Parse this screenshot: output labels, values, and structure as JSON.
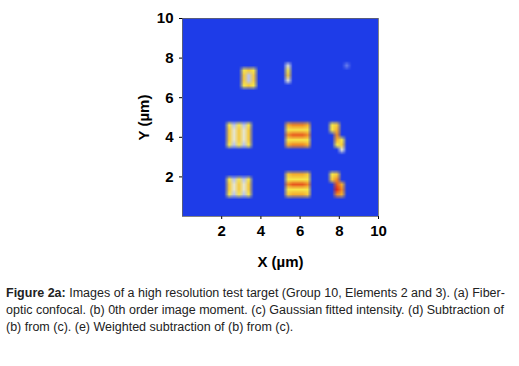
{
  "chart_data": {
    "type": "heatmap",
    "x_label": "X (µm)",
    "y_label": "Y (µm)",
    "xlim": [
      0,
      10
    ],
    "ylim": [
      0,
      10
    ],
    "xticks": [
      2,
      4,
      6,
      8,
      10
    ],
    "yticks": [
      2,
      4,
      6,
      8,
      10
    ],
    "color_range": [
      0,
      10
    ],
    "cells": [
      [
        0,
        0,
        0,
        0,
        0,
        0,
        0,
        0,
        0,
        0,
        0,
        0,
        0,
        0,
        0,
        0,
        0,
        0,
        0,
        0,
        0,
        0,
        0,
        0,
        0,
        0,
        0,
        0,
        0,
        0,
        0,
        0,
        0,
        0,
        0,
        0,
        0,
        0,
        0,
        0
      ],
      [
        0,
        0,
        0,
        0,
        0,
        0,
        0,
        0,
        0,
        0,
        0,
        0,
        0,
        0,
        0,
        0,
        0,
        0,
        0,
        0,
        0,
        0,
        0,
        0,
        0,
        0,
        0,
        0,
        0,
        0,
        0,
        0,
        0,
        0,
        0,
        0,
        0,
        0,
        0,
        0
      ],
      [
        0,
        0,
        0,
        0,
        0,
        0,
        0,
        0,
        0,
        0,
        0,
        0,
        0,
        0,
        0,
        0,
        0,
        0,
        0,
        0,
        0,
        0,
        0,
        0,
        0,
        0,
        0,
        0,
        0,
        0,
        0,
        0,
        0,
        0,
        0,
        0,
        0,
        0,
        0,
        0
      ],
      [
        0,
        0,
        0,
        0,
        0,
        0,
        0,
        0,
        0,
        0,
        0,
        0,
        0,
        0,
        0,
        0,
        0,
        0,
        0,
        0,
        0,
        0,
        0,
        0,
        0,
        0,
        0,
        0,
        0,
        0,
        0,
        0,
        0,
        0,
        0,
        0,
        0,
        0,
        0,
        0
      ],
      [
        0,
        0,
        0,
        0,
        0,
        0,
        0,
        0,
        0,
        0,
        0,
        0,
        0,
        0,
        0,
        0,
        0,
        0,
        0,
        0,
        0,
        0,
        0,
        0,
        0,
        0,
        0,
        0,
        0,
        0,
        0,
        0,
        0,
        0,
        0,
        0,
        0,
        0,
        0,
        0
      ],
      [
        0,
        0,
        0,
        0,
        0,
        0,
        0,
        0,
        0,
        0,
        0,
        0,
        0,
        0,
        0,
        0,
        0,
        0,
        0,
        0,
        0,
        0,
        0,
        0,
        0,
        0,
        0,
        0,
        0,
        0,
        0,
        0,
        0,
        0,
        0,
        0,
        0,
        0,
        0,
        0
      ],
      [
        0,
        0,
        0,
        0,
        0,
        0,
        0,
        0,
        0,
        0,
        0,
        0,
        0,
        0,
        0,
        0,
        0,
        0,
        0,
        0,
        0,
        0,
        0,
        0,
        0,
        0,
        0,
        0,
        0,
        0,
        0,
        0,
        0,
        0,
        0,
        0,
        0,
        0,
        0,
        0
      ],
      [
        0,
        0,
        0,
        0,
        0,
        0,
        0,
        0,
        0,
        0,
        0,
        0,
        0,
        0,
        0,
        0,
        0,
        0,
        0,
        0,
        0,
        0,
        0,
        0,
        0,
        0,
        0,
        0,
        0,
        0,
        0,
        0,
        0,
        0,
        0,
        0,
        0,
        0,
        0,
        0
      ],
      [
        0,
        0,
        0,
        0,
        0,
        0,
        0,
        0,
        0,
        0,
        0,
        0,
        0,
        0,
        0,
        0,
        0,
        0,
        0,
        0,
        0,
        0,
        0,
        0,
        0,
        0,
        0,
        0,
        0,
        0,
        0,
        0,
        0,
        0,
        0,
        0,
        0,
        0,
        0,
        0
      ],
      [
        0,
        0,
        0,
        0,
        0,
        0,
        0,
        0,
        0,
        0,
        0,
        0,
        0,
        0,
        0,
        0,
        0,
        0,
        0,
        0,
        0,
        3,
        0,
        0,
        0,
        0,
        0,
        0,
        0,
        0,
        0,
        0,
        0,
        1,
        0,
        0,
        0,
        0,
        0,
        0
      ],
      [
        0,
        0,
        0,
        0,
        0,
        0,
        0,
        0,
        0,
        0,
        0,
        0,
        5,
        6,
        5,
        0,
        0,
        0,
        0,
        0,
        0,
        5,
        0,
        0,
        0,
        0,
        0,
        0,
        0,
        0,
        0,
        0,
        0,
        0,
        0,
        0,
        0,
        0,
        0,
        0
      ],
      [
        0,
        0,
        0,
        0,
        0,
        0,
        0,
        0,
        0,
        0,
        0,
        0,
        6,
        2,
        6,
        0,
        0,
        0,
        0,
        0,
        0,
        6,
        0,
        0,
        0,
        0,
        0,
        0,
        0,
        0,
        0,
        0,
        0,
        0,
        0,
        0,
        0,
        0,
        0,
        0
      ],
      [
        0,
        0,
        0,
        0,
        0,
        0,
        0,
        0,
        0,
        0,
        0,
        0,
        6,
        2,
        6,
        0,
        0,
        0,
        0,
        0,
        0,
        3,
        0,
        0,
        0,
        0,
        0,
        0,
        0,
        0,
        0,
        0,
        0,
        0,
        0,
        0,
        0,
        0,
        0,
        0
      ],
      [
        0,
        0,
        0,
        0,
        0,
        0,
        0,
        0,
        0,
        0,
        0,
        0,
        5,
        6,
        5,
        0,
        0,
        0,
        0,
        0,
        0,
        0,
        0,
        0,
        0,
        0,
        0,
        0,
        0,
        0,
        0,
        0,
        0,
        0,
        0,
        0,
        0,
        0,
        0,
        0
      ],
      [
        0,
        0,
        0,
        0,
        0,
        0,
        0,
        0,
        0,
        0,
        0,
        0,
        0,
        0,
        0,
        0,
        0,
        0,
        0,
        0,
        0,
        0,
        0,
        0,
        0,
        0,
        0,
        0,
        0,
        0,
        0,
        0,
        0,
        0,
        0,
        0,
        0,
        0,
        0,
        0
      ],
      [
        0,
        0,
        0,
        0,
        0,
        0,
        0,
        0,
        0,
        0,
        0,
        0,
        0,
        0,
        0,
        0,
        0,
        0,
        0,
        0,
        0,
        0,
        0,
        0,
        0,
        0,
        0,
        0,
        0,
        0,
        0,
        0,
        0,
        0,
        0,
        0,
        0,
        0,
        0,
        0
      ],
      [
        0,
        0,
        0,
        0,
        0,
        0,
        0,
        0,
        0,
        0,
        0,
        0,
        0,
        0,
        0,
        0,
        0,
        0,
        0,
        0,
        0,
        0,
        0,
        0,
        0,
        0,
        0,
        0,
        0,
        0,
        0,
        0,
        0,
        0,
        0,
        0,
        0,
        0,
        0,
        0
      ],
      [
        0,
        0,
        0,
        0,
        0,
        0,
        0,
        0,
        0,
        0,
        0,
        0,
        0,
        0,
        0,
        0,
        0,
        0,
        0,
        0,
        0,
        0,
        0,
        0,
        0,
        0,
        0,
        0,
        0,
        0,
        0,
        0,
        0,
        0,
        0,
        0,
        0,
        0,
        0,
        0
      ],
      [
        0,
        0,
        0,
        0,
        0,
        0,
        0,
        0,
        0,
        0,
        0,
        0,
        0,
        0,
        0,
        0,
        0,
        0,
        0,
        0,
        0,
        0,
        0,
        0,
        0,
        0,
        0,
        0,
        0,
        0,
        0,
        0,
        0,
        0,
        0,
        0,
        0,
        0,
        0,
        0
      ],
      [
        0,
        0,
        0,
        0,
        0,
        0,
        0,
        0,
        0,
        0,
        0,
        0,
        0,
        0,
        0,
        0,
        0,
        0,
        0,
        0,
        0,
        0,
        0,
        0,
        0,
        0,
        0,
        0,
        0,
        0,
        0,
        0,
        0,
        0,
        0,
        0,
        0,
        0,
        0,
        0
      ],
      [
        0,
        0,
        0,
        0,
        0,
        0,
        0,
        0,
        0,
        0,
        0,
        0,
        0,
        0,
        0,
        0,
        0,
        0,
        0,
        0,
        0,
        0,
        0,
        0,
        0,
        0,
        0,
        0,
        0,
        0,
        0,
        0,
        0,
        0,
        0,
        0,
        0,
        0,
        0,
        0
      ],
      [
        0,
        0,
        0,
        0,
        0,
        0,
        0,
        0,
        0,
        5,
        2,
        5,
        2,
        5,
        0,
        0,
        0,
        0,
        0,
        0,
        0,
        7,
        8,
        8,
        8,
        7,
        0,
        0,
        0,
        0,
        5,
        6,
        0,
        0,
        0,
        0,
        0,
        0,
        0,
        0
      ],
      [
        0,
        0,
        0,
        0,
        0,
        0,
        0,
        0,
        0,
        6,
        3,
        6,
        3,
        6,
        0,
        0,
        0,
        0,
        0,
        0,
        0,
        5,
        5,
        5,
        5,
        5,
        0,
        0,
        0,
        0,
        5,
        7,
        0,
        0,
        0,
        0,
        0,
        0,
        0,
        0
      ],
      [
        0,
        0,
        0,
        0,
        0,
        0,
        0,
        0,
        0,
        6,
        3,
        6,
        3,
        6,
        0,
        0,
        0,
        0,
        0,
        0,
        0,
        8,
        9,
        9,
        9,
        8,
        0,
        0,
        0,
        0,
        0,
        8,
        0,
        0,
        0,
        0,
        0,
        0,
        0,
        0
      ],
      [
        0,
        0,
        0,
        0,
        0,
        0,
        0,
        0,
        0,
        6,
        3,
        6,
        3,
        6,
        0,
        0,
        0,
        0,
        0,
        0,
        0,
        5,
        5,
        5,
        5,
        5,
        0,
        0,
        0,
        0,
        0,
        7,
        5,
        0,
        0,
        0,
        0,
        0,
        0,
        0
      ],
      [
        0,
        0,
        0,
        0,
        0,
        0,
        0,
        0,
        0,
        5,
        2,
        5,
        2,
        5,
        0,
        0,
        0,
        0,
        0,
        0,
        0,
        7,
        8,
        8,
        8,
        7,
        0,
        0,
        0,
        0,
        0,
        5,
        6,
        0,
        0,
        0,
        0,
        0,
        0,
        0
      ],
      [
        0,
        0,
        0,
        0,
        0,
        0,
        0,
        0,
        0,
        0,
        0,
        0,
        0,
        0,
        0,
        0,
        0,
        0,
        0,
        0,
        0,
        0,
        0,
        0,
        0,
        0,
        0,
        0,
        0,
        0,
        0,
        0,
        3,
        0,
        0,
        0,
        0,
        0,
        0,
        0
      ],
      [
        0,
        0,
        0,
        0,
        0,
        0,
        0,
        0,
        0,
        0,
        0,
        0,
        0,
        0,
        0,
        0,
        0,
        0,
        0,
        0,
        0,
        0,
        0,
        0,
        0,
        0,
        0,
        0,
        0,
        0,
        0,
        0,
        0,
        0,
        0,
        0,
        0,
        0,
        0,
        0
      ],
      [
        0,
        0,
        0,
        0,
        0,
        0,
        0,
        0,
        0,
        0,
        0,
        0,
        0,
        0,
        0,
        0,
        0,
        0,
        0,
        0,
        0,
        0,
        0,
        0,
        0,
        0,
        0,
        0,
        0,
        0,
        0,
        0,
        0,
        0,
        0,
        0,
        0,
        0,
        0,
        0
      ],
      [
        0,
        0,
        0,
        0,
        0,
        0,
        0,
        0,
        0,
        0,
        0,
        0,
        0,
        0,
        0,
        0,
        0,
        0,
        0,
        0,
        0,
        0,
        0,
        0,
        0,
        0,
        0,
        0,
        0,
        0,
        0,
        0,
        0,
        0,
        0,
        0,
        0,
        0,
        0,
        0
      ],
      [
        0,
        0,
        0,
        0,
        0,
        0,
        0,
        0,
        0,
        0,
        0,
        0,
        0,
        0,
        0,
        0,
        0,
        0,
        0,
        0,
        0,
        0,
        0,
        0,
        0,
        0,
        0,
        0,
        0,
        0,
        0,
        0,
        0,
        0,
        0,
        0,
        0,
        0,
        0,
        0
      ],
      [
        0,
        0,
        0,
        0,
        0,
        0,
        0,
        0,
        0,
        0,
        0,
        0,
        0,
        0,
        0,
        0,
        0,
        0,
        0,
        0,
        0,
        6,
        7,
        7,
        7,
        6,
        0,
        0,
        0,
        0,
        5,
        6,
        0,
        0,
        0,
        0,
        0,
        0,
        0,
        0
      ],
      [
        0,
        0,
        0,
        0,
        0,
        0,
        0,
        0,
        0,
        5,
        2,
        5,
        2,
        5,
        0,
        0,
        0,
        0,
        0,
        0,
        0,
        5,
        5,
        5,
        5,
        5,
        0,
        0,
        0,
        0,
        6,
        8,
        0,
        0,
        0,
        0,
        0,
        0,
        0,
        0
      ],
      [
        0,
        0,
        0,
        0,
        0,
        0,
        0,
        0,
        0,
        6,
        3,
        6,
        3,
        6,
        0,
        0,
        0,
        0,
        0,
        0,
        0,
        8,
        9,
        9,
        9,
        8,
        0,
        0,
        0,
        0,
        0,
        9,
        7,
        0,
        0,
        0,
        0,
        0,
        0,
        0
      ],
      [
        0,
        0,
        0,
        0,
        0,
        0,
        0,
        0,
        0,
        6,
        3,
        6,
        3,
        6,
        0,
        0,
        0,
        0,
        0,
        0,
        0,
        5,
        5,
        5,
        5,
        5,
        0,
        0,
        0,
        0,
        0,
        10,
        8,
        0,
        0,
        0,
        0,
        0,
        0,
        0
      ],
      [
        0,
        0,
        0,
        0,
        0,
        0,
        0,
        0,
        0,
        5,
        2,
        5,
        2,
        5,
        0,
        0,
        0,
        0,
        0,
        0,
        0,
        6,
        7,
        7,
        7,
        6,
        0,
        0,
        0,
        0,
        0,
        8,
        7,
        0,
        0,
        0,
        0,
        0,
        0,
        0
      ],
      [
        0,
        0,
        0,
        0,
        0,
        0,
        0,
        0,
        0,
        0,
        0,
        0,
        0,
        0,
        0,
        0,
        0,
        0,
        0,
        0,
        0,
        0,
        0,
        0,
        0,
        0,
        0,
        0,
        0,
        0,
        0,
        0,
        0,
        0,
        0,
        0,
        0,
        0,
        0,
        0
      ],
      [
        0,
        0,
        0,
        0,
        0,
        0,
        0,
        0,
        0,
        0,
        0,
        0,
        0,
        0,
        0,
        0,
        0,
        0,
        0,
        0,
        0,
        0,
        0,
        0,
        0,
        0,
        0,
        0,
        0,
        0,
        0,
        0,
        0,
        0,
        0,
        0,
        0,
        0,
        0,
        0
      ],
      [
        0,
        0,
        0,
        0,
        0,
        0,
        0,
        0,
        0,
        0,
        0,
        0,
        0,
        0,
        0,
        0,
        0,
        0,
        0,
        0,
        0,
        0,
        0,
        0,
        0,
        0,
        0,
        0,
        0,
        0,
        0,
        0,
        0,
        0,
        0,
        0,
        0,
        0,
        0,
        0
      ],
      [
        0,
        0,
        0,
        0,
        0,
        0,
        0,
        0,
        0,
        0,
        0,
        0,
        0,
        0,
        0,
        0,
        0,
        0,
        0,
        0,
        0,
        0,
        0,
        0,
        0,
        0,
        0,
        0,
        0,
        0,
        0,
        0,
        0,
        0,
        0,
        0,
        0,
        0,
        0,
        0
      ]
    ]
  },
  "caption": {
    "label": "Figure 2a:",
    "text": "Images of a high resolution test target (Group 10, Elements 2 and 3). (a) Fiber-optic confocal. (b) 0th order image moment. (c) Gaussian fitted intensity. (d) Subtraction of (b) from (c). (e) Weighted subtraction of (b) from (c)."
  }
}
